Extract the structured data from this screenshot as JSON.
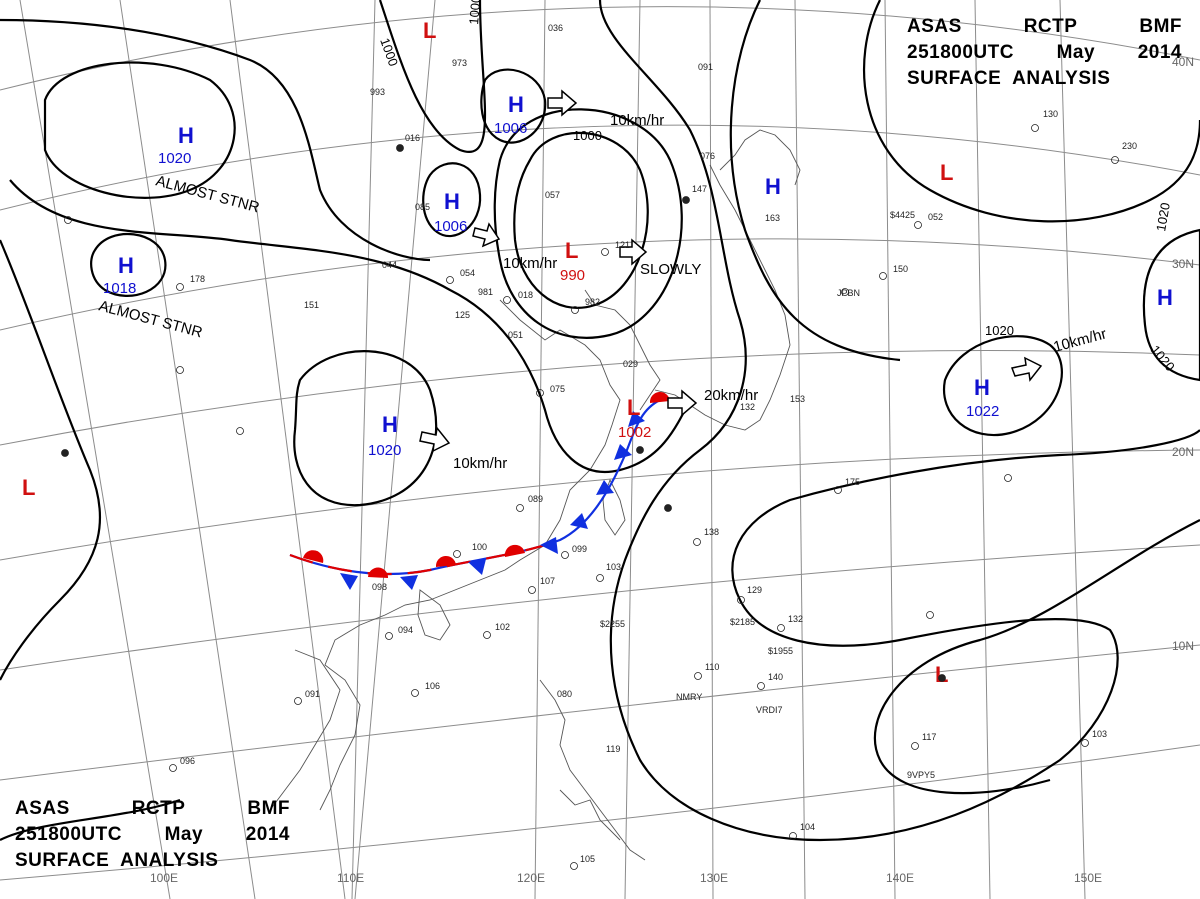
{
  "header": {
    "line1": [
      "ASAS",
      "RCTP",
      "BMF"
    ],
    "line2": [
      "251800UTC",
      "May",
      "2014"
    ],
    "line3": "SURFACE  ANALYSIS"
  },
  "colors": {
    "high": "#1010d0",
    "low": "#d01010",
    "warm_front": "#e00000",
    "cold_front": "#1030e0",
    "isobar": "#000000",
    "grid": "#888888"
  },
  "grid_labels": {
    "lon": [
      "110E",
      "120E",
      "130E",
      "140E",
      "150E",
      "100E"
    ],
    "lat": [
      "40N",
      "30N",
      "20N",
      "10N"
    ]
  },
  "pressure_centers": [
    {
      "type": "H",
      "value": "1020",
      "note": "ALMOST STNR",
      "motion": ""
    },
    {
      "type": "H",
      "value": "1018",
      "note": "ALMOST STNR",
      "motion": ""
    },
    {
      "type": "H",
      "value": "1006",
      "note": "",
      "motion": ""
    },
    {
      "type": "H",
      "value": "1006",
      "note": "",
      "motion": ""
    },
    {
      "type": "L",
      "value": "990",
      "note": "SLOWLY",
      "motion": "10km/hr"
    },
    {
      "type": "H",
      "value": "1020",
      "note": "",
      "motion": "10km/hr"
    },
    {
      "type": "L",
      "value": "1002",
      "note": "",
      "motion": "20km/hr"
    },
    {
      "type": "H",
      "value": "1022",
      "note": "",
      "motion": "10km/hr"
    },
    {
      "type": "H",
      "value": "",
      "note": "",
      "motion": ""
    },
    {
      "type": "H",
      "value": "",
      "note": "",
      "motion": ""
    },
    {
      "type": "L",
      "value": "",
      "note": "",
      "motion": ""
    },
    {
      "type": "L",
      "value": "",
      "note": "",
      "motion": ""
    },
    {
      "type": "L",
      "value": "",
      "note": "",
      "motion": ""
    },
    {
      "type": "L",
      "value": "",
      "note": "",
      "motion": ""
    }
  ],
  "motion_labels": [
    "10km/hr",
    "10km/hr",
    "10km/hr",
    "20km/hr",
    "10km/hr"
  ],
  "isobar_labels": [
    "1000",
    "1000",
    "1000",
    "1020",
    "1020",
    "1020"
  ],
  "stations": [
    "018",
    "089",
    "100",
    "099",
    "103",
    "107",
    "102",
    "094",
    "098",
    "106",
    "091",
    "096",
    "105",
    "080",
    "119",
    "110",
    "140",
    "129",
    "132",
    "138",
    "175",
    "117",
    "103",
    "104",
    "132",
    "044",
    "054",
    "125",
    "151",
    "178",
    "153",
    "163",
    "147",
    "076",
    "091",
    "085",
    "029",
    "051",
    "075",
    "981",
    "982",
    "057",
    "121",
    "973",
    "993",
    "036",
    "016",
    "130",
    "230",
    "052",
    "150"
  ],
  "ship_ids": [
    "JPBN",
    "$4425",
    "$2185",
    "$1955",
    "$2255",
    "NMRY",
    "VRDI7",
    "9VPY5"
  ]
}
